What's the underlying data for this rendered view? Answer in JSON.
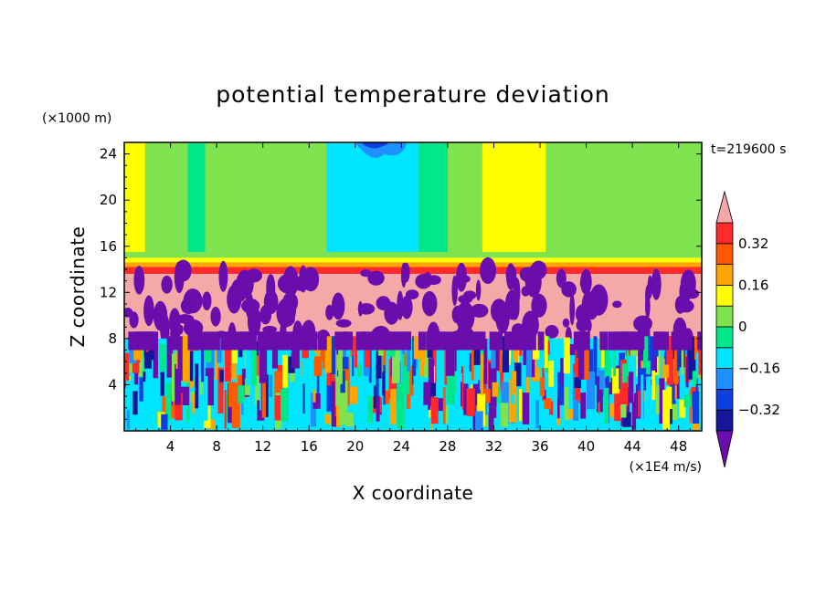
{
  "chart_data": {
    "type": "heatmap",
    "title": "potential temperature deviation",
    "xlabel": "X coordinate",
    "ylabel": "Z coordinate",
    "x_unit": "(×1E4 m/s)",
    "y_unit": "(×1000 m)",
    "time_label": "t=219600 s",
    "xlim": [
      0,
      50
    ],
    "ylim": [
      0,
      25
    ],
    "x_ticks": [
      4,
      8,
      12,
      16,
      20,
      24,
      28,
      32,
      36,
      40,
      44,
      48
    ],
    "y_ticks": [
      4,
      8,
      12,
      16,
      20,
      24
    ],
    "colorbar": {
      "levels": [
        -0.4,
        -0.32,
        -0.24,
        -0.16,
        -0.08,
        0,
        0.08,
        0.16,
        0.24,
        0.32,
        0.4
      ],
      "labeled_levels": [
        -0.32,
        -0.16,
        0,
        0.16,
        0.32
      ],
      "labels": [
        "−0.32",
        "−0.16",
        "0",
        "0.16",
        "0.32"
      ],
      "colors": [
        "#6a0dad",
        "#16169a",
        "#0b3fe0",
        "#1e90ff",
        "#00e5ff",
        "#00e68a",
        "#7ee34f",
        "#ffff00",
        "#ffa500",
        "#ff5a00",
        "#ff2a2a",
        "#f5a8a8"
      ]
    },
    "regions": [
      {
        "band": "upper",
        "z_range": [
          15,
          25
        ],
        "description": "smooth layered bands: green/cyan/yellow"
      },
      {
        "band": "inversion",
        "z_range": [
          13.5,
          15
        ],
        "description": "red-orange strip"
      },
      {
        "band": "middle",
        "z_range": [
          8,
          13.5
        ],
        "description": "pink with purple patches"
      },
      {
        "band": "lower",
        "z_range": [
          0,
          8
        ],
        "description": "turbulent multicolor"
      }
    ]
  }
}
